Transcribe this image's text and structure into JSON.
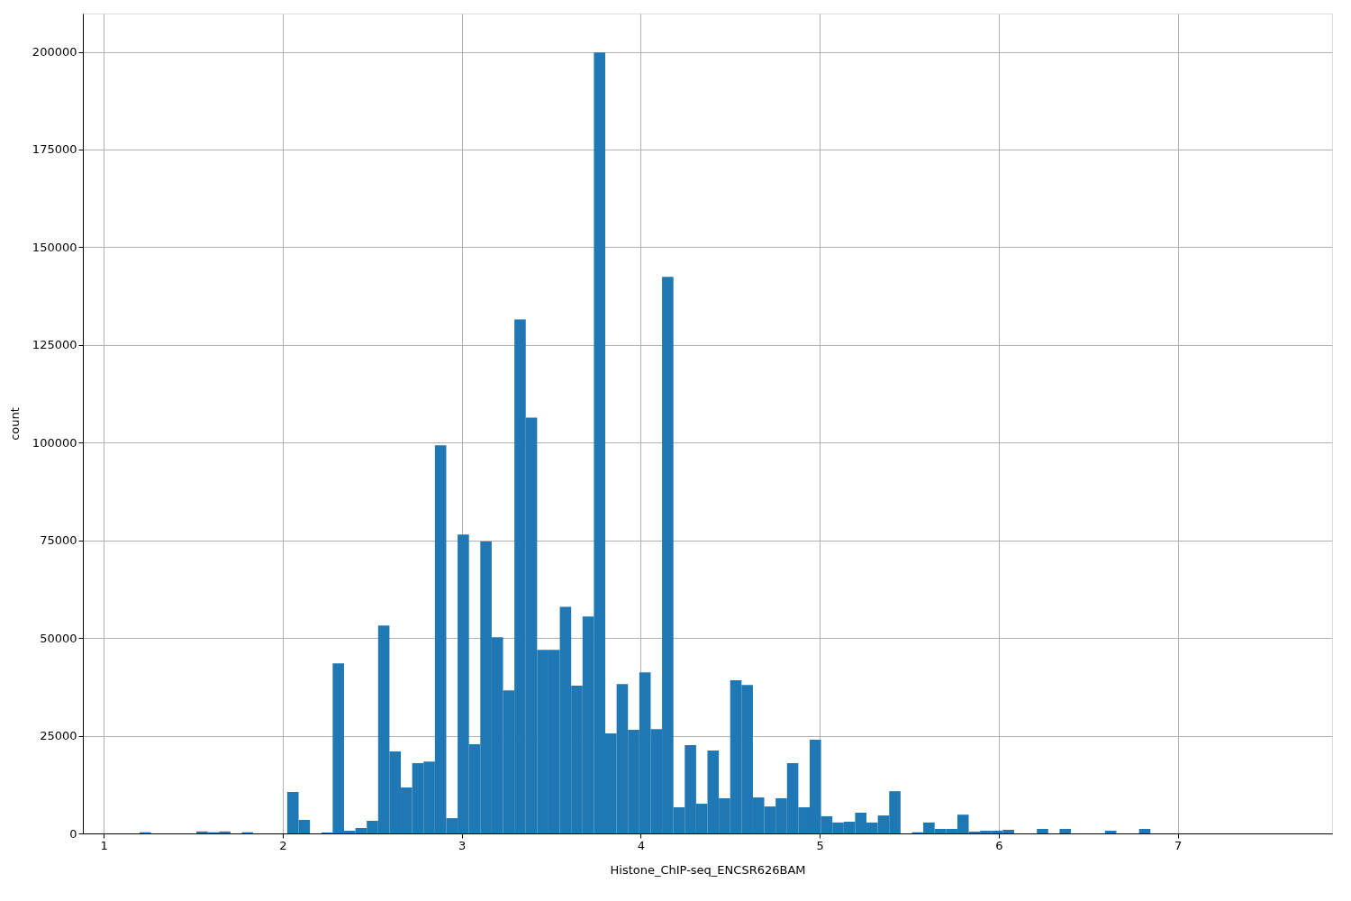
{
  "chart_data": {
    "type": "histogram",
    "xlabel": "Histone_ChIP-seq_ENCSR626BAM",
    "ylabel": "count",
    "color": "#1f77b4",
    "bins": [
      1.2,
      1.26345,
      1.3269,
      1.39035,
      1.4538,
      1.51725,
      1.5807,
      1.64415,
      1.7076,
      1.77105,
      1.8345,
      1.89795,
      1.9614,
      2.02485,
      2.0883,
      2.15175,
      2.2152,
      2.27865,
      2.3421,
      2.40555,
      2.469,
      2.53245,
      2.5959,
      2.65935,
      2.7228,
      2.78625,
      2.8497,
      2.91315,
      2.9766,
      3.04005,
      3.1035,
      3.16695,
      3.2304,
      3.29385,
      3.3573,
      3.42075,
      3.4842,
      3.54765,
      3.6111,
      3.67455,
      3.738,
      3.80145,
      3.8649,
      3.92835,
      3.9918,
      4.05525,
      4.1187,
      4.18215,
      4.2456,
      4.30905,
      4.3725,
      4.43595,
      4.4994,
      4.56285,
      4.6263,
      4.68975,
      4.7532,
      4.81665,
      4.8801,
      4.94355,
      5.007,
      5.07045,
      5.1339,
      5.19735,
      5.2608,
      5.32425,
      5.3877,
      5.45115,
      5.5146,
      5.57805,
      5.6415,
      5.70495,
      5.7684,
      5.83185,
      5.8953,
      5.95875,
      6.0222,
      6.08565,
      6.1491,
      6.21255,
      6.276,
      6.33945,
      6.4029,
      6.46635,
      6.5298,
      6.59325,
      6.6567,
      6.72015,
      6.7836,
      6.84705,
      6.9105,
      6.97395,
      7.0374,
      7.10085,
      7.1643,
      7.22775,
      7.2912,
      7.35465,
      7.4181,
      7.48155,
      7.545
    ],
    "values": [
      300,
      0,
      0,
      0,
      0,
      500,
      300,
      500,
      0,
      300,
      0,
      0,
      0,
      10600,
      3450,
      0,
      230,
      43500,
      690,
      1380,
      3230,
      53200,
      21000,
      11750,
      18000,
      18400,
      99300,
      3900,
      76500,
      22800,
      74700,
      50200,
      36600,
      131500,
      106400,
      47000,
      47000,
      58000,
      37800,
      55500,
      199800,
      25600,
      38200,
      26500,
      41200,
      26700,
      142400,
      6700,
      22600,
      7600,
      21200,
      9000,
      39200,
      38000,
      9200,
      6900,
      9000,
      18000,
      6700,
      24000,
      4400,
      2800,
      3000,
      5300,
      2800,
      4600,
      10800,
      0,
      300,
      2800,
      1150,
      1150,
      4800,
      460,
      690,
      690,
      920,
      0,
      0,
      1150,
      0,
      1150,
      0,
      0,
      0,
      690,
      0,
      0,
      1150,
      0,
      0,
      0,
      0,
      0,
      0,
      0,
      0,
      0,
      0,
      0
    ],
    "xlim": [
      0.883,
      7.862
    ],
    "ylim": [
      0,
      209800
    ],
    "xticks": [
      1,
      2,
      3,
      4,
      5,
      6,
      7
    ],
    "yticks": [
      0,
      25000,
      50000,
      75000,
      100000,
      125000,
      150000,
      175000,
      200000
    ],
    "grid": true
  }
}
